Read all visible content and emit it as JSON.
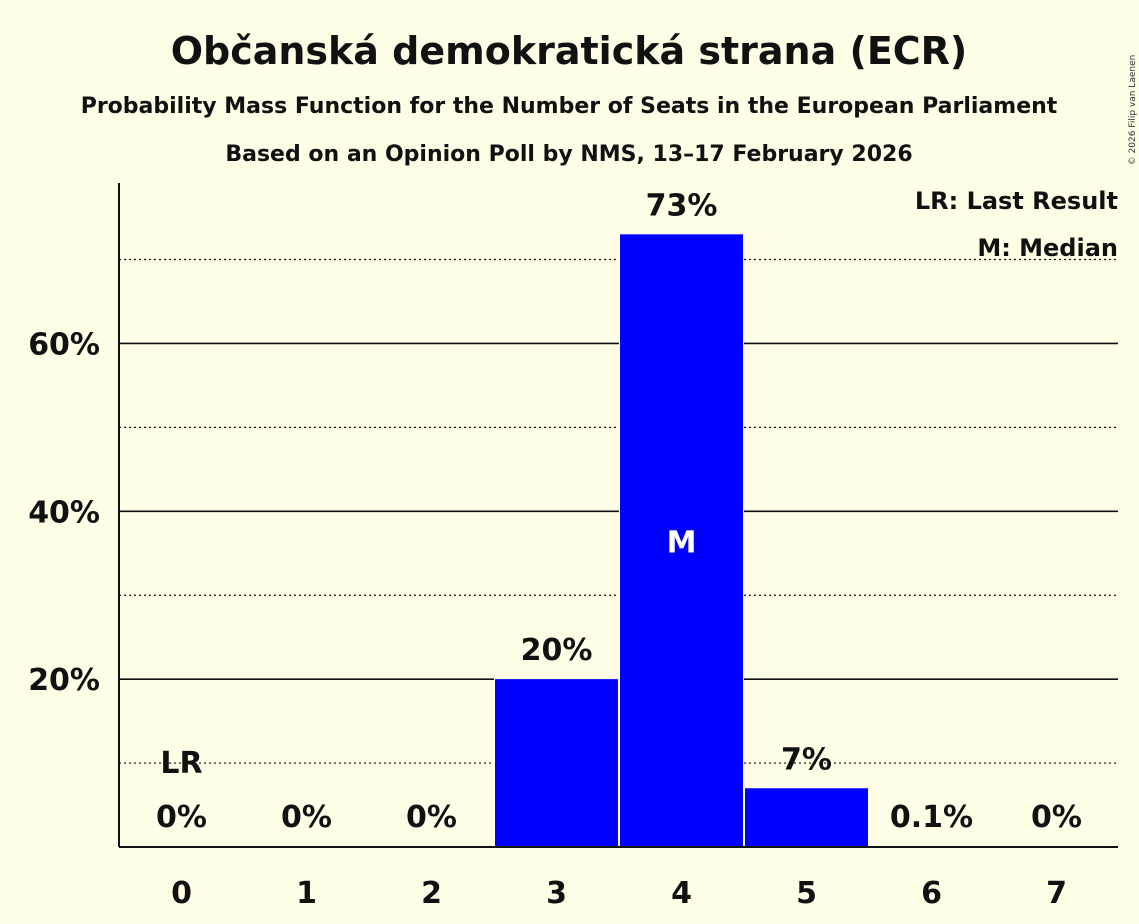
{
  "chart_data": {
    "type": "bar",
    "title": "Občanská demokratická strana (ECR)",
    "subtitle": "Probability Mass Function for the Number of Seats in the European Parliament",
    "subtitle2": "Based on an Opinion Poll by NMS, 13–17 February 2026",
    "categories": [
      "0",
      "1",
      "2",
      "3",
      "4",
      "5",
      "6",
      "7"
    ],
    "values": [
      0,
      0,
      0,
      20,
      73,
      7,
      0.1,
      0
    ],
    "value_labels": [
      "0%",
      "0%",
      "0%",
      "20%",
      "73%",
      "7%",
      "0.1%",
      "0%"
    ],
    "ylim": [
      0,
      79
    ],
    "y_major_ticks": [
      20,
      40,
      60
    ],
    "y_major_tick_labels": [
      "20%",
      "40%",
      "60%"
    ],
    "y_minor_gridlines": [
      10,
      30,
      50,
      70
    ],
    "last_result_seats": 0,
    "last_result_marker": "LR",
    "median_seats": 4,
    "median_marker": "M",
    "bar_color": "#0000ff",
    "legend": [
      "LR: Last Result",
      "M: Median"
    ],
    "legend_position": "top-right",
    "copyright": "© 2026 Filip van Laenen"
  }
}
